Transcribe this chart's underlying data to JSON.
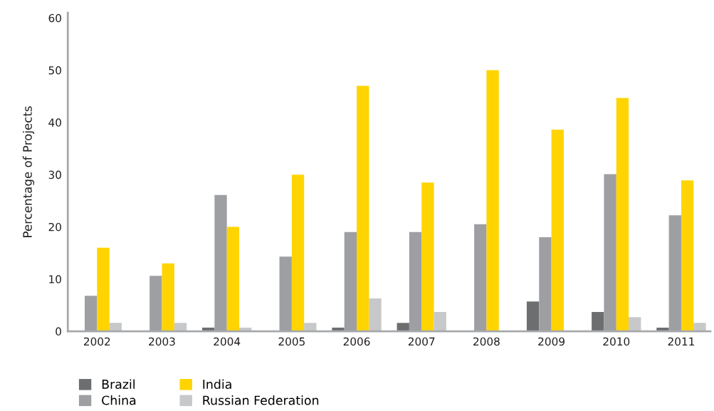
{
  "chart_data": {
    "type": "bar",
    "ylabel": "Percentage of Projects",
    "categories": [
      "2002",
      "2003",
      "2004",
      "2005",
      "2006",
      "2007",
      "2008",
      "2009",
      "2010",
      "2011"
    ],
    "series": [
      {
        "name": "Brazil",
        "color": "#6d6e70",
        "values": [
          0,
          0,
          0.7,
          0,
          0.7,
          1.6,
          0,
          5.7,
          3.7,
          0.7
        ]
      },
      {
        "name": "China",
        "color": "#9d9fa2",
        "values": [
          6.8,
          10.6,
          26.1,
          14.3,
          19,
          19,
          20.5,
          18,
          30.1,
          22.2
        ]
      },
      {
        "name": "India",
        "color": "#ffd400",
        "values": [
          16,
          13,
          20,
          30,
          47,
          28.5,
          50,
          38.6,
          44.7,
          28.9
        ]
      },
      {
        "name": "Russian Federation",
        "color": "#c7c8ca",
        "values": [
          1.6,
          1.6,
          0.7,
          1.6,
          6.3,
          3.7,
          0,
          0,
          2.7,
          1.6
        ]
      }
    ],
    "ylim": [
      0,
      61
    ],
    "yticks": [
      0,
      10,
      20,
      30,
      40,
      50,
      60
    ],
    "grid": false,
    "legend": "bottom"
  }
}
